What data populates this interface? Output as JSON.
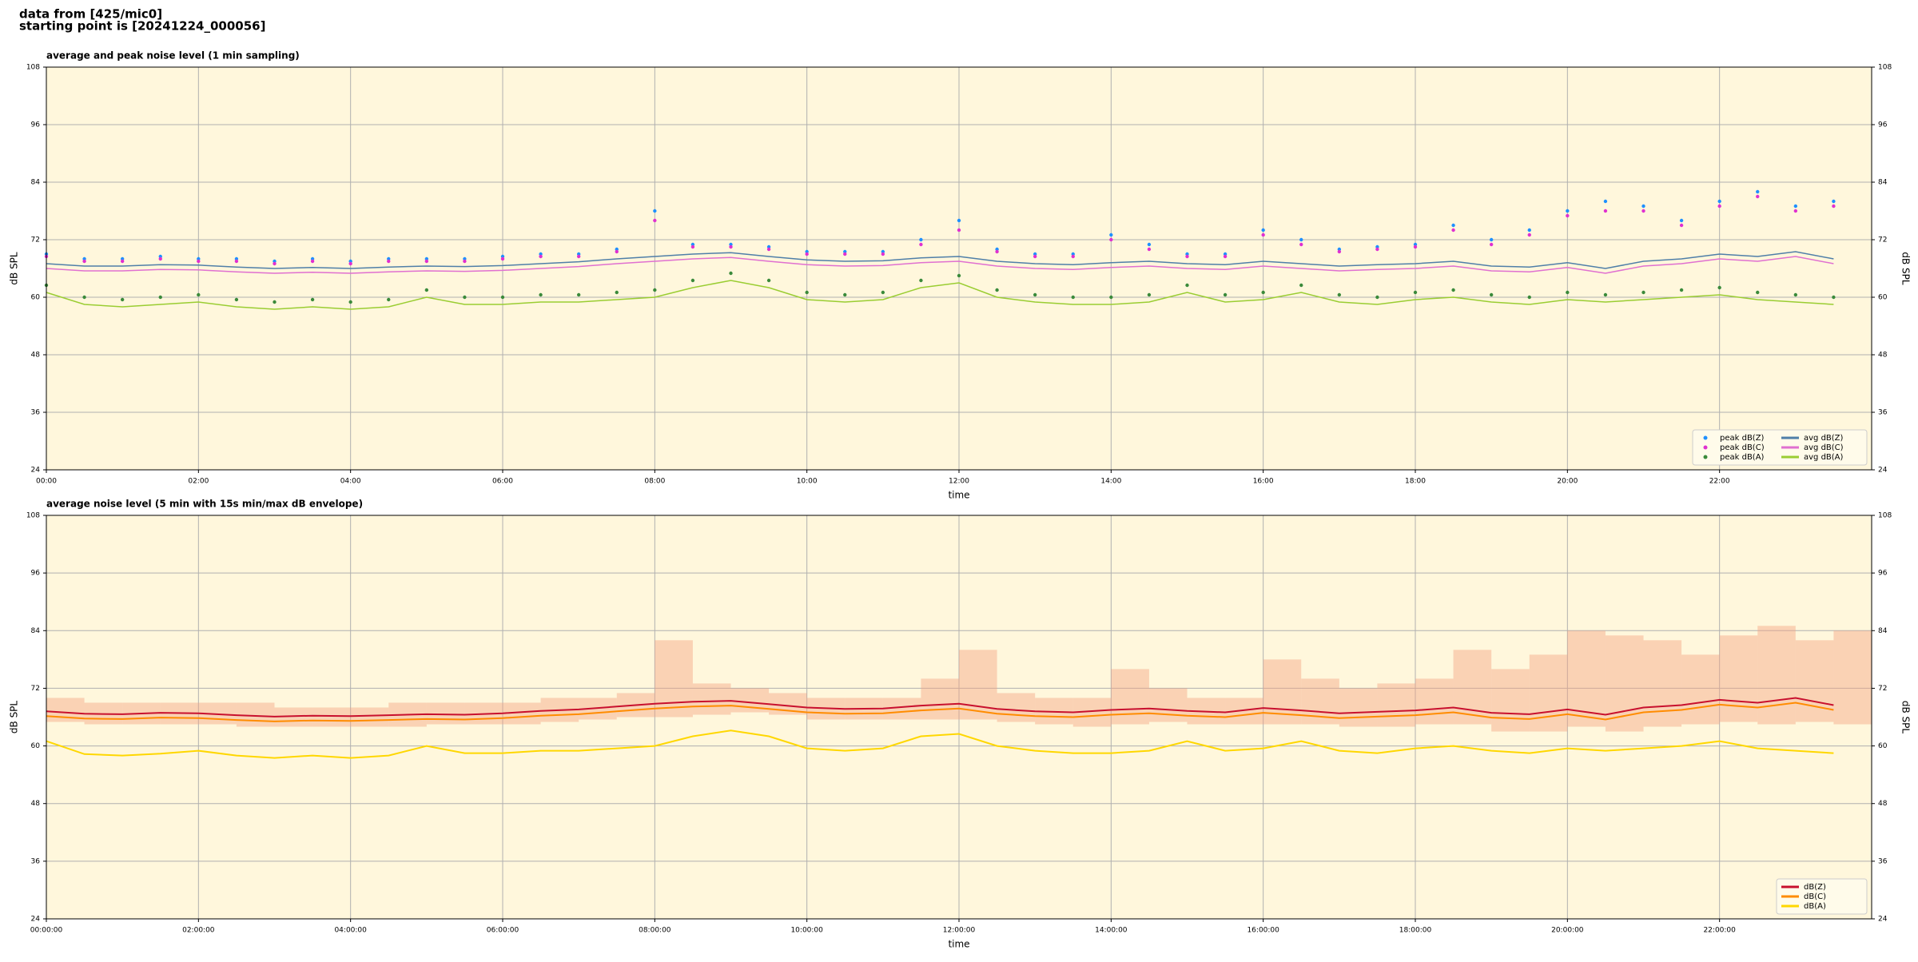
{
  "header": {
    "lines": [
      "data from [425/mic0]",
      "starting point is [20241224_000056]"
    ]
  },
  "chart_data": [
    {
      "type": "line",
      "title": "average and peak noise level (1 min sampling)",
      "x_label": "time",
      "y_label": "dB SPL",
      "y_label_right": "dB SPL",
      "xlim": [
        0,
        24
      ],
      "ylim": [
        24,
        108
      ],
      "yticks": [
        24,
        36,
        48,
        60,
        72,
        84,
        96,
        108
      ],
      "xticks": [
        {
          "value": 0,
          "label": "00:00"
        },
        {
          "value": 2,
          "label": "02:00"
        },
        {
          "value": 4,
          "label": "04:00"
        },
        {
          "value": 6,
          "label": "06:00"
        },
        {
          "value": 8,
          "label": "08:00"
        },
        {
          "value": 10,
          "label": "10:00"
        },
        {
          "value": 12,
          "label": "12:00"
        },
        {
          "value": 14,
          "label": "14:00"
        },
        {
          "value": 16,
          "label": "16:00"
        },
        {
          "value": 18,
          "label": "18:00"
        },
        {
          "value": 20,
          "label": "20:00"
        },
        {
          "value": 22,
          "label": "22:00"
        }
      ],
      "grid": true,
      "legend": "lower right",
      "background": "#fff7dc",
      "x": [
        0,
        0.5,
        1,
        1.5,
        2,
        2.5,
        3,
        3.5,
        4,
        4.5,
        5,
        5.5,
        6,
        6.5,
        7,
        7.5,
        8,
        8.5,
        9,
        9.5,
        10,
        10.5,
        11,
        11.5,
        12,
        12.5,
        13,
        13.5,
        14,
        14.5,
        15,
        15.5,
        16,
        16.5,
        17,
        17.5,
        18,
        18.5,
        19,
        19.5,
        20,
        20.5,
        21,
        21.5,
        22,
        22.5,
        23,
        23.5
      ],
      "series": [
        {
          "name": "peak dB(Z)",
          "style": "markers",
          "color": "#1e90ff",
          "values": [
            69,
            68,
            68,
            68.5,
            68,
            68,
            67.5,
            68,
            67.5,
            68,
            68,
            68,
            68.5,
            69,
            69,
            70,
            78,
            71,
            71,
            70.5,
            69.5,
            69.5,
            69.5,
            72,
            76,
            70,
            69,
            69,
            73,
            71,
            69,
            69,
            74,
            72,
            70,
            70.5,
            71,
            75,
            72,
            74,
            78,
            80,
            79,
            76,
            80,
            82,
            79,
            80
          ]
        },
        {
          "name": "peak dB(C)",
          "style": "markers",
          "color": "#e030d0",
          "values": [
            68.5,
            67.5,
            67.5,
            68,
            67.5,
            67.5,
            67,
            67.5,
            67,
            67.5,
            67.5,
            67.5,
            68,
            68.5,
            68.5,
            69.5,
            76,
            70.5,
            70.5,
            70,
            69,
            69,
            69,
            71,
            74,
            69.5,
            68.5,
            68.5,
            72,
            70,
            68.5,
            68.5,
            73,
            71,
            69.5,
            70,
            70.5,
            74,
            71,
            73,
            77,
            78,
            78,
            75,
            79,
            81,
            78,
            79
          ]
        },
        {
          "name": "peak dB(A)",
          "style": "markers",
          "color": "#3a8a3a",
          "values": [
            62.5,
            60,
            59.5,
            60,
            60.5,
            59.5,
            59,
            59.5,
            59,
            59.5,
            61.5,
            60,
            60,
            60.5,
            60.5,
            61,
            61.5,
            63.5,
            65,
            63.5,
            61,
            60.5,
            61,
            63.5,
            64.5,
            61.5,
            60.5,
            60,
            60,
            60.5,
            62.5,
            60.5,
            61,
            62.5,
            60.5,
            60,
            61,
            61.5,
            60.5,
            60,
            61,
            60.5,
            61,
            61.5,
            62,
            61,
            60.5,
            60
          ]
        },
        {
          "name": "avg dB(Z)",
          "style": "line",
          "color": "#4f7fa8",
          "values": [
            67,
            66.5,
            66.5,
            66.8,
            66.7,
            66.3,
            66,
            66.2,
            66,
            66.3,
            66.5,
            66.4,
            66.6,
            67,
            67.4,
            68,
            68.5,
            69,
            69.3,
            68.5,
            67.8,
            67.5,
            67.6,
            68.2,
            68.5,
            67.5,
            67,
            66.8,
            67.2,
            67.5,
            67,
            66.8,
            67.5,
            67,
            66.5,
            66.8,
            67,
            67.5,
            66.5,
            66.3,
            67.2,
            66,
            67.5,
            68,
            69,
            68.5,
            69.5,
            68
          ]
        },
        {
          "name": "avg dB(C)",
          "style": "line",
          "color": "#e070d0",
          "values": [
            66,
            65.5,
            65.5,
            65.8,
            65.7,
            65.3,
            65,
            65.2,
            65,
            65.3,
            65.5,
            65.4,
            65.6,
            66,
            66.4,
            67,
            67.5,
            68,
            68.3,
            67.5,
            66.8,
            66.5,
            66.6,
            67.2,
            67.5,
            66.5,
            66,
            65.8,
            66.2,
            66.5,
            66,
            65.8,
            66.5,
            66,
            65.5,
            65.8,
            66,
            66.5,
            65.5,
            65.3,
            66.2,
            65,
            66.5,
            67,
            68,
            67.5,
            68.5,
            67
          ]
        },
        {
          "name": "avg dB(A)",
          "style": "line",
          "color": "#9acd32",
          "values": [
            61,
            58.5,
            58,
            58.5,
            59,
            58,
            57.5,
            58,
            57.5,
            58,
            60,
            58.5,
            58.5,
            59,
            59,
            59.5,
            60,
            62,
            63.5,
            62,
            59.5,
            59,
            59.5,
            62,
            63,
            60,
            59,
            58.5,
            58.5,
            59,
            61,
            59,
            59.5,
            61,
            59,
            58.5,
            59.5,
            60,
            59,
            58.5,
            59.5,
            59,
            59.5,
            60,
            60.5,
            59.5,
            59,
            58.5
          ]
        }
      ]
    },
    {
      "type": "line",
      "title": "average noise level (5 min with 15s min/max dB envelope)",
      "x_label": "time",
      "y_label": "dB SPL",
      "y_label_right": "dB SPL",
      "xlim": [
        0,
        24
      ],
      "ylim": [
        24,
        108
      ],
      "yticks": [
        24,
        36,
        48,
        60,
        72,
        84,
        96,
        108
      ],
      "xticks": [
        {
          "value": 0,
          "label": "00:00:00"
        },
        {
          "value": 2,
          "label": "02:00:00"
        },
        {
          "value": 4,
          "label": "04:00:00"
        },
        {
          "value": 6,
          "label": "06:00:00"
        },
        {
          "value": 8,
          "label": "08:00:00"
        },
        {
          "value": 10,
          "label": "10:00:00"
        },
        {
          "value": 12,
          "label": "12:00:00"
        },
        {
          "value": 14,
          "label": "14:00:00"
        },
        {
          "value": 16,
          "label": "16:00:00"
        },
        {
          "value": 18,
          "label": "18:00:00"
        },
        {
          "value": 20,
          "label": "20:00:00"
        },
        {
          "value": 22,
          "label": "22:00:00"
        }
      ],
      "grid": true,
      "legend": "lower right",
      "background": "#fff7dc",
      "x": [
        0,
        0.5,
        1,
        1.5,
        2,
        2.5,
        3,
        3.5,
        4,
        4.5,
        5,
        5.5,
        6,
        6.5,
        7,
        7.5,
        8,
        8.5,
        9,
        9.5,
        10,
        10.5,
        11,
        11.5,
        12,
        12.5,
        13,
        13.5,
        14,
        14.5,
        15,
        15.5,
        16,
        16.5,
        17,
        17.5,
        18,
        18.5,
        19,
        19.5,
        20,
        20.5,
        21,
        21.5,
        22,
        22.5,
        23,
        23.5
      ],
      "envelope": {
        "color": "#f4a582",
        "high": [
          70,
          69,
          69,
          69,
          69,
          69,
          68,
          68,
          68,
          69,
          69,
          69,
          69,
          70,
          70,
          71,
          82,
          73,
          72,
          71,
          70,
          70,
          70,
          74,
          80,
          71,
          70,
          70,
          76,
          72,
          70,
          70,
          78,
          74,
          72,
          73,
          74,
          80,
          76,
          79,
          84,
          83,
          82,
          79,
          83,
          85,
          82,
          84
        ],
        "low": [
          65,
          64.5,
          64.5,
          64.5,
          64.5,
          64,
          64,
          64,
          64,
          64,
          64.5,
          64.5,
          64.5,
          65,
          65.5,
          66,
          66,
          66.5,
          67,
          66.5,
          65.5,
          65.5,
          65.5,
          65.5,
          65.5,
          65,
          64.5,
          64,
          64.5,
          65,
          64.5,
          64.5,
          64.5,
          64.5,
          64,
          64,
          64.5,
          64.5,
          63,
          63,
          64,
          63,
          64,
          64.5,
          65,
          64.5,
          65,
          64.5
        ]
      },
      "series": [
        {
          "name": "dB(Z)",
          "style": "line",
          "color": "#c8102e",
          "values": [
            67.2,
            66.7,
            66.6,
            66.9,
            66.8,
            66.4,
            66.1,
            66.3,
            66.2,
            66.4,
            66.6,
            66.5,
            66.8,
            67.3,
            67.6,
            68.2,
            68.8,
            69.2,
            69.4,
            68.7,
            68,
            67.7,
            67.8,
            68.4,
            68.8,
            67.7,
            67.2,
            67,
            67.5,
            67.8,
            67.3,
            67,
            67.9,
            67.4,
            66.8,
            67.1,
            67.4,
            68,
            66.9,
            66.6,
            67.6,
            66.5,
            68,
            68.5,
            69.6,
            69,
            70,
            68.5
          ]
        },
        {
          "name": "dB(C)",
          "style": "line",
          "color": "#ff8c00",
          "values": [
            66.2,
            65.7,
            65.6,
            65.9,
            65.8,
            65.4,
            65.1,
            65.3,
            65.2,
            65.4,
            65.6,
            65.5,
            65.8,
            66.3,
            66.6,
            67.2,
            67.8,
            68.2,
            68.4,
            67.7,
            67,
            66.7,
            66.8,
            67.4,
            67.8,
            66.7,
            66.2,
            66,
            66.5,
            66.8,
            66.3,
            66,
            66.9,
            66.4,
            65.8,
            66.1,
            66.4,
            67,
            65.9,
            65.6,
            66.6,
            65.5,
            67,
            67.5,
            68.6,
            68,
            69,
            67.5
          ]
        },
        {
          "name": "dB(A)",
          "style": "line",
          "color": "#ffd700",
          "values": [
            61,
            58.3,
            58,
            58.4,
            59,
            58,
            57.5,
            58,
            57.5,
            58,
            60,
            58.5,
            58.5,
            59,
            59,
            59.5,
            60,
            62,
            63.2,
            62,
            59.5,
            59,
            59.5,
            62,
            62.5,
            60,
            59,
            58.5,
            58.5,
            59,
            61,
            59,
            59.5,
            61,
            59,
            58.5,
            59.5,
            60,
            59,
            58.5,
            59.5,
            59,
            59.5,
            60,
            61,
            59.5,
            59,
            58.5
          ]
        }
      ]
    }
  ]
}
